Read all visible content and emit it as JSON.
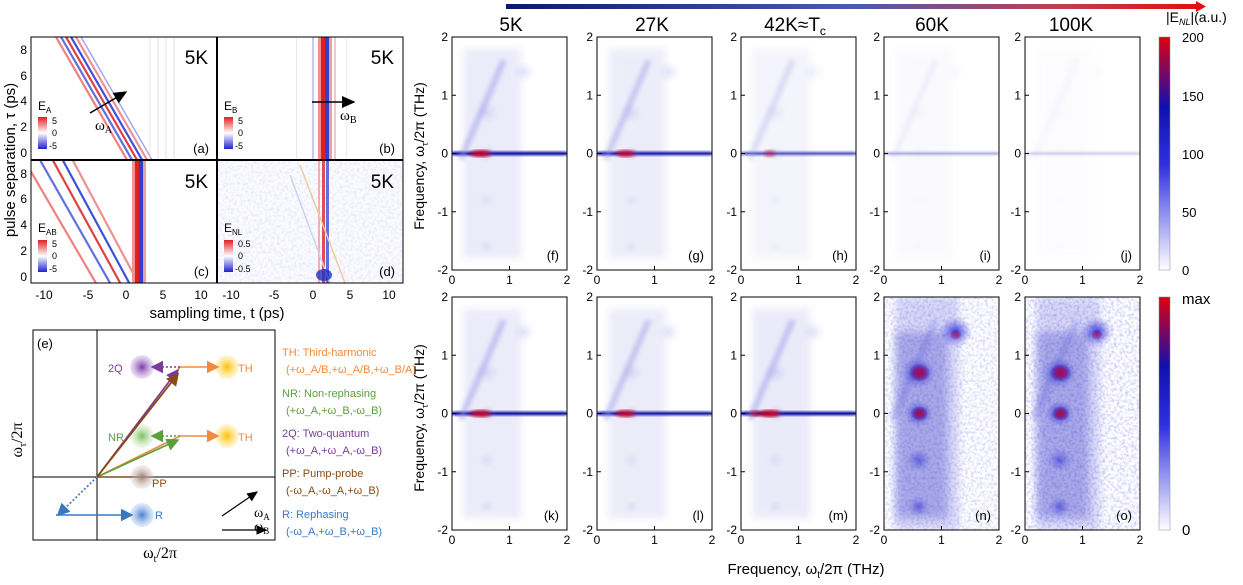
{
  "figure": {
    "temperatures": [
      "5K",
      "27K",
      "42K≈T",
      "60K",
      "100K"
    ],
    "tc_subscript": "c",
    "td_left": {
      "ylabel": "pulse separation, τ (ps)",
      "xlabel": "sampling time, t (ps)",
      "y_ticks": [
        "0",
        "2",
        "4",
        "6",
        "8"
      ],
      "x_ticks": [
        "-10",
        "-5",
        "0",
        "5",
        "10"
      ],
      "panels": [
        {
          "id": "a",
          "label": "(a)",
          "temp": "5K",
          "field": "E",
          "field_sub": "A",
          "cbar": [
            "5",
            "0",
            "-5"
          ],
          "arrow_label": "ω",
          "arrow_sub": "A"
        },
        {
          "id": "b",
          "label": "(b)",
          "temp": "5K",
          "field": "E",
          "field_sub": "B",
          "cbar": [
            "5",
            "0",
            "-5"
          ],
          "arrow_label": "ω",
          "arrow_sub": "B"
        },
        {
          "id": "c",
          "label": "(c)",
          "temp": "5K",
          "field": "E",
          "field_sub": "AB",
          "cbar": [
            "5",
            "0",
            "-5"
          ]
        },
        {
          "id": "d",
          "label": "(d)",
          "temp": "5K",
          "field": "E",
          "field_sub": "NL",
          "cbar": [
            "0.5",
            "0",
            "-0.5"
          ]
        }
      ]
    },
    "schematic": {
      "label": "(e)",
      "ylabel": "ω",
      "ylabel_sub": "τ",
      "ylabel_tail": "/2π",
      "xlabel": "ω",
      "xlabel_sub": "t",
      "xlabel_tail": "/2π",
      "circles": {
        "q2": "2Q",
        "nr": "NR",
        "th1": "TH",
        "th2": "TH",
        "pp": "PP",
        "r": "R"
      },
      "inset": {
        "a": "ω",
        "a_sub": "A",
        "b": "ω",
        "b_sub": "B"
      },
      "legend": [
        {
          "title": "TH: Third-harmonic",
          "terms": "(+ω_A/B,+ω_A/B,+ω_B/A)",
          "color": "#f08a3e"
        },
        {
          "title": "NR: Non-rephasing",
          "terms": "(+ω_A,+ω_B,-ω_B)",
          "color": "#5c9e3c"
        },
        {
          "title": "2Q: Two-quantum",
          "terms": "(+ω_A,+ω_A,-ω_B)",
          "color": "#7a3a9e"
        },
        {
          "title": "PP: Pump-probe",
          "terms": "(-ω_A,-ω_A,+ω_B)",
          "color": "#8b4a12"
        },
        {
          "title": "R: Rephasing",
          "terms": "(-ω_A,+ω_B,+ω_B)",
          "color": "#3a78c4"
        }
      ]
    },
    "spectra": {
      "ylabel": "Frequency, ω",
      "ylabel_sub": "τ",
      "ylabel_tail": "/2π (THz)",
      "xlabel": "Frequency, ω",
      "xlabel_sub": "t",
      "xlabel_tail": "/2π (THz)",
      "y_ticks": [
        "2",
        "1",
        "0",
        "-1",
        "-2"
      ],
      "x_ticks": [
        "0",
        "1",
        "2"
      ],
      "top_labels": [
        "(f)",
        "(g)",
        "(h)",
        "(i)",
        "(j)"
      ],
      "bottom_labels": [
        "(k)",
        "(l)",
        "(m)",
        "(n)",
        "(o)"
      ],
      "cbar_top": {
        "title": "|E",
        "title_sub": "NL",
        "title_tail": "|(a.u.)",
        "ticks": [
          "200",
          "150",
          "100",
          "50",
          "0"
        ]
      },
      "cbar_bottom": {
        "max": "max",
        "min": "0"
      }
    }
  },
  "colors": {
    "red": "#d62020",
    "blue": "#2a2ad8",
    "cmap_low": "#ffffff",
    "cmap_mid": "#1a1ad0",
    "cmap_high": "#d80010"
  }
}
